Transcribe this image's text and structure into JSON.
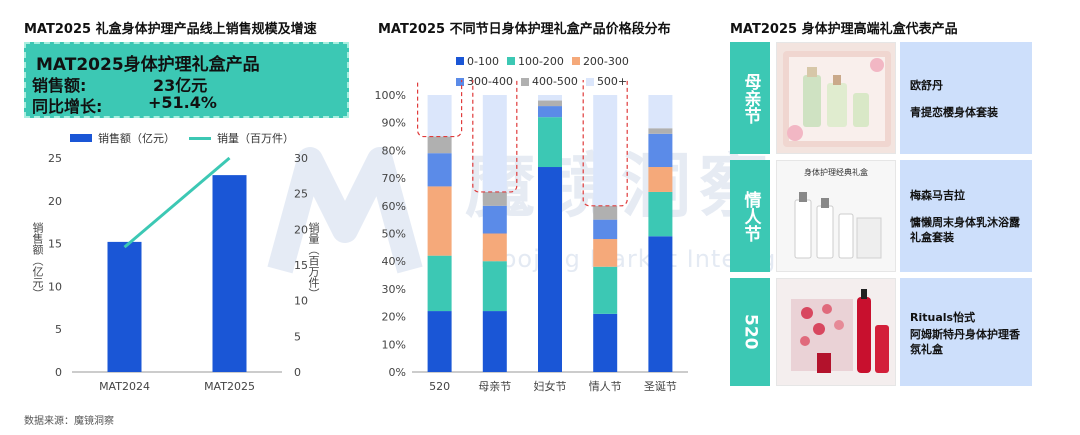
{
  "titles": {
    "left": "MAT2025 礼盒身体护理产品线上销售规模及增速",
    "middle": "MAT2025 不同节日身体护理礼盒产品价格段分布",
    "right": "MAT2025 身体护理高端礼盒代表产品"
  },
  "highlight": {
    "title": "MAT2025身体护理礼盒产品",
    "row1_label": "销售额:",
    "row1_value": "23亿元",
    "row2_label": "同比增长:",
    "row2_value": "+51.4%"
  },
  "watermark": {
    "cn": "魔镜洞察",
    "en": "Moojing Market Intelligence"
  },
  "source": "数据来源：魔镜洞察",
  "colors": {
    "teal": "#3cc8b4",
    "blue": "#1f4fd0",
    "light_blue_panel": "#cddffb"
  },
  "chart_data": [
    {
      "type": "bar",
      "categories": [
        "MAT2024",
        "MAT2025"
      ],
      "series": [
        {
          "name": "销售额（亿元）",
          "values": [
            15.2,
            23
          ],
          "color": "#1a56d6",
          "axis": "left"
        },
        {
          "name": "销量（百万件）",
          "values": [
            17.5,
            30
          ],
          "color": "#3cc8b4",
          "axis": "right",
          "type": "line"
        }
      ],
      "ylabel": "销售额（亿元）",
      "ylabel_right": "销量（百万件）",
      "ylim": [
        0,
        25
      ],
      "ylim_right": [
        0,
        30
      ],
      "yticks": [
        "0",
        "5",
        "10",
        "15",
        "20",
        "25"
      ],
      "yticks_right": [
        "0",
        "5",
        "10",
        "15",
        "20",
        "25",
        "30"
      ],
      "legend": "top"
    },
    {
      "type": "bar",
      "stacked": true,
      "categories": [
        "520",
        "母亲节",
        "妇女节",
        "情人节",
        "圣诞节"
      ],
      "series": [
        {
          "name": "0-100",
          "color": "#1a56d6",
          "values": [
            22,
            22,
            74,
            21,
            49
          ]
        },
        {
          "name": "100-200",
          "color": "#3cc8b4",
          "values": [
            20,
            18,
            18,
            17,
            16
          ]
        },
        {
          "name": "200-300",
          "color": "#f5a97a",
          "values": [
            25,
            10,
            0,
            10,
            9
          ]
        },
        {
          "name": "300-400",
          "color": "#5b8be8",
          "values": [
            12,
            10,
            4,
            7,
            12
          ]
        },
        {
          "name": "400-500",
          "color": "#b0b0b0",
          "values": [
            6,
            5,
            2,
            5,
            2
          ]
        },
        {
          "name": "500+",
          "color": "#dbe6fb",
          "values": [
            15,
            35,
            2,
            40,
            12
          ]
        }
      ],
      "yticks": [
        "0%",
        "10%",
        "20%",
        "30%",
        "40%",
        "50%",
        "60%",
        "70%",
        "80%",
        "90%",
        "100%"
      ],
      "ylim": [
        0,
        100
      ],
      "legend": "top"
    }
  ],
  "products": [
    {
      "tag": "母亲节",
      "brand": "欧舒丹",
      "name": "青提恋樱身体套装"
    },
    {
      "tag": "情人节",
      "brand": "梅森马吉拉",
      "name": "慵懒周末身体乳沐浴露礼盒套装",
      "photo_caption": "身体护理经典礼盒"
    },
    {
      "tag": "520",
      "brand": "Rituals怡式",
      "name": "阿姆斯特丹身体护理香氛礼盒"
    }
  ]
}
